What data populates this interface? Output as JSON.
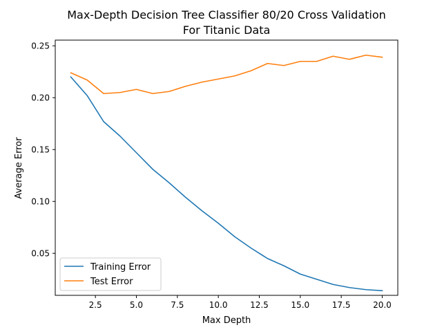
{
  "chart_data": {
    "type": "line",
    "title": [
      "Max-Depth Decision Tree Classifier 80/20 Cross Validation",
      "For Titanic Data"
    ],
    "xlabel": "Max Depth",
    "ylabel": "Average Error",
    "xlim": [
      0.05,
      20.95
    ],
    "ylim": [
      0.0095,
      0.2555
    ],
    "xticks": [
      2.5,
      5.0,
      7.5,
      10.0,
      12.5,
      15.0,
      17.5,
      20.0
    ],
    "xtick_labels": [
      "2.5",
      "5.0",
      "7.5",
      "10.0",
      "12.5",
      "15.0",
      "17.5",
      "20.0"
    ],
    "yticks": [
      0.05,
      0.1,
      0.15,
      0.2,
      0.25
    ],
    "ytick_labels": [
      "0.05",
      "0.10",
      "0.15",
      "0.20",
      "0.25"
    ],
    "grid": false,
    "legend_position": "lower-left",
    "x": [
      1,
      2,
      3,
      4,
      5,
      6,
      7,
      8,
      9,
      10,
      11,
      12,
      13,
      14,
      15,
      16,
      17,
      18,
      19,
      20
    ],
    "series": [
      {
        "name": "Training Error",
        "color": "#1f77b4",
        "values": [
          0.22,
          0.202,
          0.177,
          0.163,
          0.147,
          0.131,
          0.118,
          0.104,
          0.091,
          0.079,
          0.066,
          0.055,
          0.045,
          0.038,
          0.03,
          0.025,
          0.02,
          0.017,
          0.015,
          0.014
        ]
      },
      {
        "name": "Test Error",
        "color": "#ff7f0e",
        "values": [
          0.224,
          0.217,
          0.204,
          0.205,
          0.208,
          0.204,
          0.206,
          0.211,
          0.215,
          0.218,
          0.221,
          0.226,
          0.233,
          0.231,
          0.235,
          0.235,
          0.24,
          0.237,
          0.241,
          0.239
        ]
      }
    ]
  }
}
